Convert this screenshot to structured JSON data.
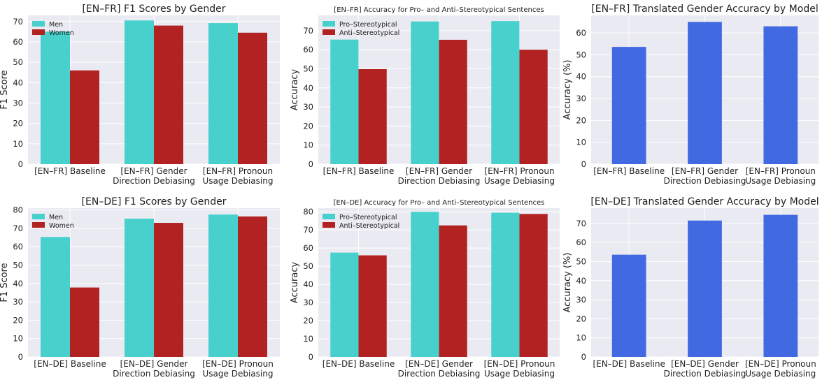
{
  "colors": {
    "men": "#48D1CC",
    "women": "#B22222",
    "pro": "#48D1CC",
    "anti": "#B22222",
    "accuracy": "#4169E1",
    "plot_bg": "#EAEAF2",
    "grid": "#ffffff"
  },
  "chart_data": [
    {
      "id": "fr-f1",
      "type": "bar",
      "title": "[EN–FR] F1 Scores by Gender",
      "xlabel": "",
      "ylabel": "F1 Score",
      "categories": [
        [
          "[EN–FR] Baseline"
        ],
        [
          "[EN–FR] Gender",
          "Direction Debiasing"
        ],
        [
          "[EN–FR] Pronoun",
          "Usage Debiasing"
        ]
      ],
      "series": [
        {
          "name": "Men",
          "color": "#48D1CC",
          "values": [
            65.0,
            70.5,
            69.2
          ]
        },
        {
          "name": "Women",
          "color": "#B22222",
          "values": [
            46.0,
            68.0,
            64.5
          ]
        }
      ],
      "ylim": [
        0,
        73
      ],
      "yticks": [
        0,
        10,
        20,
        30,
        40,
        50,
        60,
        70
      ],
      "legend": "top-left",
      "grid": true
    },
    {
      "id": "fr-acc",
      "type": "bar",
      "title": "[EN–FR] Accuracy for Pro– and Anti–Stereotypical Sentences",
      "xlabel": "",
      "ylabel": "Accuracy",
      "categories": [
        [
          "[EN–FR] Baseline"
        ],
        [
          "[EN–FR] Gender",
          "Direction Debiasing"
        ],
        [
          "[EN–FR] Pronoun",
          "Usage Debiasing"
        ]
      ],
      "series": [
        {
          "name": "Pro–Stereotypical",
          "color": "#48D1CC",
          "values": [
            65.3,
            74.8,
            75.0
          ]
        },
        {
          "name": "Anti–Stereotypical",
          "color": "#B22222",
          "values": [
            49.8,
            65.2,
            60.0
          ]
        }
      ],
      "ylim": [
        0,
        78
      ],
      "yticks": [
        0,
        10,
        20,
        30,
        40,
        50,
        60,
        70
      ],
      "legend": "top-left",
      "grid": true
    },
    {
      "id": "fr-gender",
      "type": "bar",
      "title": "[EN–FR] Translated Gender Accuracy by Model",
      "xlabel": "",
      "ylabel": "Accuracy (%)",
      "categories": [
        [
          "[EN–FR] Baseline"
        ],
        [
          "[EN–FR] Gender",
          "Direction Debiasing"
        ],
        [
          "[EN–FR] Pronoun",
          "Usage Debiasing"
        ]
      ],
      "series": [
        {
          "color": "#4169E1",
          "values": [
            53.6,
            65.0,
            63.0
          ]
        }
      ],
      "ylim": [
        0,
        68
      ],
      "yticks": [
        0,
        10,
        20,
        30,
        40,
        50,
        60
      ],
      "legend": "none",
      "grid": true
    },
    {
      "id": "de-f1",
      "type": "bar",
      "title": "[EN–DE] F1 Scores by Gender",
      "xlabel": "",
      "ylabel": "F1 Score",
      "categories": [
        [
          "[EN–DE] Baseline"
        ],
        [
          "[EN–DE] Gender",
          "Direction Debiasing"
        ],
        [
          "[EN–DE] Pronoun",
          "Usage Debiasing"
        ]
      ],
      "series": [
        {
          "name": "Men",
          "color": "#48D1CC",
          "values": [
            65.3,
            75.3,
            77.5
          ]
        },
        {
          "name": "Women",
          "color": "#B22222",
          "values": [
            37.8,
            73.0,
            76.5
          ]
        }
      ],
      "ylim": [
        0,
        81
      ],
      "yticks": [
        0,
        10,
        20,
        30,
        40,
        50,
        60,
        70,
        80
      ],
      "legend": "top-left",
      "grid": true
    },
    {
      "id": "de-acc",
      "type": "bar",
      "title": "[EN–DE] Accuracy for Pro– and Anti–Stereotypical Sentences",
      "xlabel": "",
      "ylabel": "Accuracy",
      "categories": [
        [
          "[EN–DE] Baseline"
        ],
        [
          "[EN–DE] Gender",
          "Direction Debiasing"
        ],
        [
          "[EN–DE] Pronoun",
          "Usage Debiasing"
        ]
      ],
      "series": [
        {
          "name": "Pro–Stereotypical",
          "color": "#48D1CC",
          "values": [
            57.5,
            80.0,
            79.5
          ]
        },
        {
          "name": "Anti–Stereotypical",
          "color": "#B22222",
          "values": [
            56.0,
            72.5,
            78.8
          ]
        }
      ],
      "ylim": [
        0,
        82
      ],
      "yticks": [
        0,
        10,
        20,
        30,
        40,
        50,
        60,
        70,
        80
      ],
      "legend": "top-left",
      "grid": true
    },
    {
      "id": "de-gender",
      "type": "bar",
      "title": "[EN–DE] Translated Gender Accuracy by Model",
      "xlabel": "",
      "ylabel": "Accuracy (%)",
      "categories": [
        [
          "[EN–DE] Baseline"
        ],
        [
          "[EN–DE] Gender",
          "Direction Debiasing"
        ],
        [
          "[EN–DE] Pronoun",
          "Usage Debiasing"
        ]
      ],
      "series": [
        {
          "color": "#4169E1",
          "values": [
            53.6,
            71.5,
            74.5
          ]
        }
      ],
      "ylim": [
        0,
        78
      ],
      "yticks": [
        0,
        10,
        20,
        30,
        40,
        50,
        60,
        70
      ],
      "legend": "none",
      "grid": true
    }
  ]
}
